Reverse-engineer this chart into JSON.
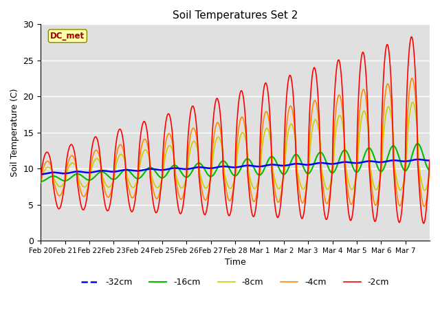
{
  "title": "Soil Temperatures Set 2",
  "xlabel": "Time",
  "ylabel": "Soil Temperature (C)",
  "annotation": "DC_met",
  "ylim": [
    0,
    30
  ],
  "xtick_labels": [
    "Feb 20",
    "Feb 21",
    "Feb 22",
    "Feb 23",
    "Feb 24",
    "Feb 25",
    "Feb 26",
    "Feb 27",
    "Feb 28",
    "Mar 1",
    "Mar 2",
    "Mar 3",
    "Mar 4",
    "Mar 5",
    "Mar 6",
    "Mar 7"
  ],
  "legend_labels": [
    "-32cm",
    "-16cm",
    "-8cm",
    "-4cm",
    "-2cm"
  ],
  "legend_colors": [
    "#0000ff",
    "#00bb00",
    "#cccc00",
    "#ff8800",
    "#ff0000"
  ],
  "bg_color": "#e0e0e0",
  "fig_color": "#ffffff",
  "pts_per_day": 120,
  "n_days": 16
}
